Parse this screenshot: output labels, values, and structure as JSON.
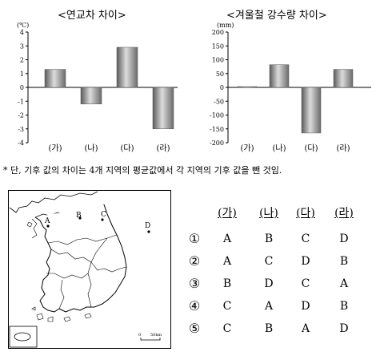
{
  "chart_data": [
    {
      "type": "bar",
      "title": "<연교차 차이>",
      "unit": "(℃)",
      "categories": [
        "(가)",
        "(나)",
        "(다)",
        "(라)"
      ],
      "values": [
        1.3,
        -1.2,
        2.9,
        -3.0
      ],
      "ylim": [
        -4,
        4
      ],
      "yticks": [
        "4",
        "3",
        "2",
        "1",
        "0",
        "-1",
        "-2",
        "-3",
        "-4"
      ]
    },
    {
      "type": "bar",
      "title": "<겨울철 강수량 차이>",
      "unit": "(mm)",
      "categories": [
        "(가)",
        "(나)",
        "(다)",
        "(라)"
      ],
      "values": [
        3,
        82,
        -165,
        65
      ],
      "ylim": [
        -200,
        200
      ],
      "yticks": [
        "200",
        "150",
        "100",
        "50",
        "0",
        "-50",
        "-100",
        "-150",
        "-200"
      ]
    }
  ],
  "note": "* 단, 기후 값의 차이는 4개 지역의 평균값에서 각 지역의 기후 값을 뺀 것임.",
  "map": {
    "point_labels": [
      "A",
      "B",
      "C",
      "D"
    ],
    "scale_zero": "0",
    "scale_dist": "50km"
  },
  "answers": {
    "headers": [
      "(가)",
      "(나)",
      "(다)",
      "(라)"
    ],
    "rows": [
      {
        "num": "①",
        "vals": [
          "A",
          "B",
          "C",
          "D"
        ]
      },
      {
        "num": "②",
        "vals": [
          "A",
          "C",
          "D",
          "B"
        ]
      },
      {
        "num": "③",
        "vals": [
          "B",
          "D",
          "C",
          "A"
        ]
      },
      {
        "num": "④",
        "vals": [
          "C",
          "A",
          "D",
          "B"
        ]
      },
      {
        "num": "⑤",
        "vals": [
          "C",
          "B",
          "A",
          "D"
        ]
      }
    ]
  }
}
